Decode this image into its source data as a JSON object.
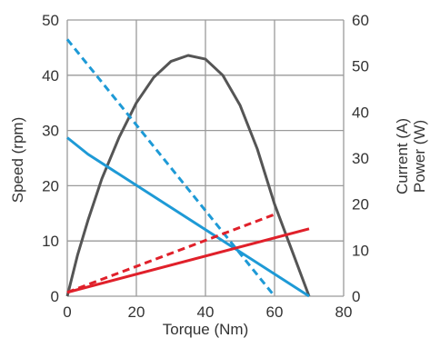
{
  "chart_data": {
    "type": "line",
    "title": "",
    "xlabel": "Torque (Nm)",
    "ylabel_left": "Speed (rpm)",
    "ylabel_right": [
      "Current (A)",
      "Power (W)"
    ],
    "xlim": [
      0,
      80
    ],
    "ylim_left": [
      0,
      50
    ],
    "ylim_right": [
      0,
      60
    ],
    "xticks": [
      0,
      20,
      40,
      60,
      80
    ],
    "yticks_left": [
      0,
      10,
      20,
      30,
      40,
      50
    ],
    "yticks_right": [
      0,
      10,
      20,
      30,
      40,
      50,
      60
    ],
    "grid": true,
    "legend": "none",
    "series": [
      {
        "axis": "right",
        "style": "solid",
        "color": "#555555",
        "points": [
          [
            0,
            0
          ],
          [
            3,
            9
          ],
          [
            6,
            16.5
          ],
          [
            10,
            25.5
          ],
          [
            15,
            34.5
          ],
          [
            20,
            42
          ],
          [
            25,
            47.5
          ],
          [
            30,
            51
          ],
          [
            35,
            52.3
          ],
          [
            40,
            51.5
          ],
          [
            45,
            48
          ],
          [
            50,
            41.5
          ],
          [
            55,
            32
          ],
          [
            60,
            20
          ],
          [
            65,
            10
          ],
          [
            70,
            0
          ]
        ]
      },
      {
        "axis": "left",
        "style": "solid",
        "color": "#1e9ad6",
        "points": [
          [
            0,
            28.7
          ],
          [
            6,
            25.7
          ],
          [
            70,
            0
          ]
        ]
      },
      {
        "axis": "left",
        "style": "dashed",
        "color": "#1e9ad6",
        "points": [
          [
            0,
            46.5
          ],
          [
            60,
            0
          ]
        ]
      },
      {
        "axis": "left",
        "style": "solid",
        "color": "#e0202a",
        "points": [
          [
            0,
            0.7
          ],
          [
            70,
            12.2
          ]
        ]
      },
      {
        "axis": "left",
        "style": "dashed",
        "color": "#e0202a",
        "points": [
          [
            0,
            0.7
          ],
          [
            60,
            14.8
          ]
        ]
      }
    ]
  }
}
